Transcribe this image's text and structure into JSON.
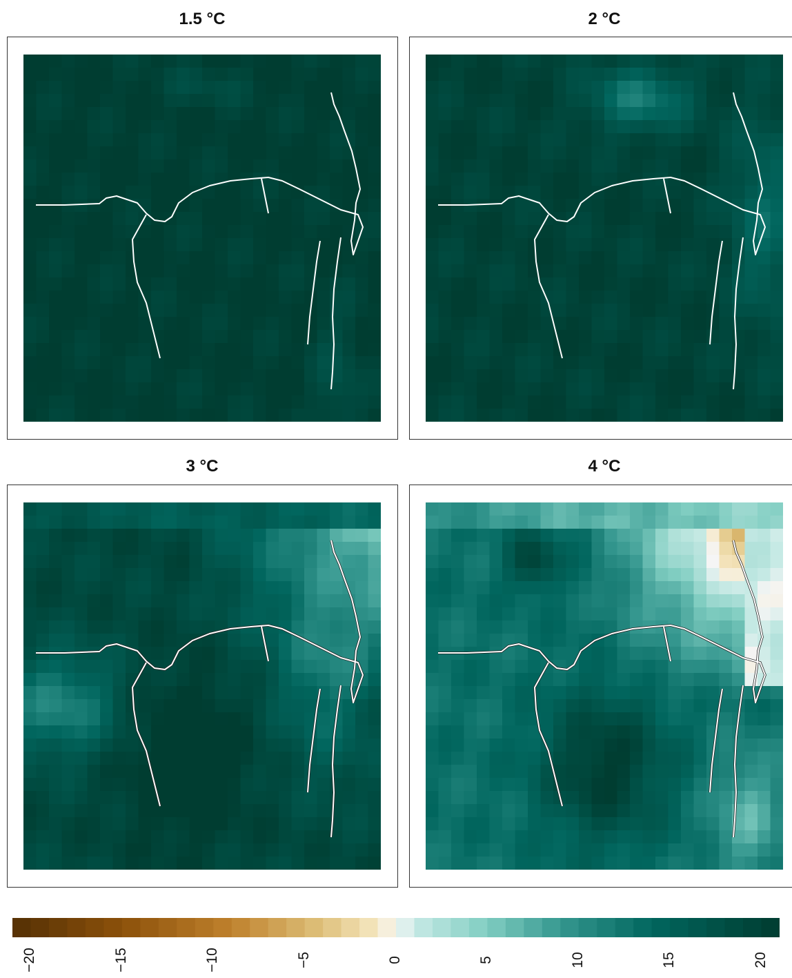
{
  "chart_data": {
    "type": "heatmap",
    "panels": [
      {
        "title": "1.5 °C",
        "level": 0
      },
      {
        "title": "2 °C",
        "level": 1
      },
      {
        "title": "3 °C",
        "level": 2
      },
      {
        "title": "4 °C",
        "level": 3
      }
    ],
    "colorbar": {
      "range": [
        -21,
        21
      ],
      "bins": 42,
      "ticks": [
        -20,
        -15,
        -10,
        -5,
        0,
        5,
        10,
        15,
        20
      ],
      "tick_labels": [
        "−20",
        "−15",
        "−10",
        "−5",
        "0",
        "5",
        "10",
        "15",
        "20"
      ],
      "low_color": "#543005",
      "mid_color": "#f5f5f5",
      "high_color": "#003c30"
    },
    "river_color": "#ffffff"
  }
}
